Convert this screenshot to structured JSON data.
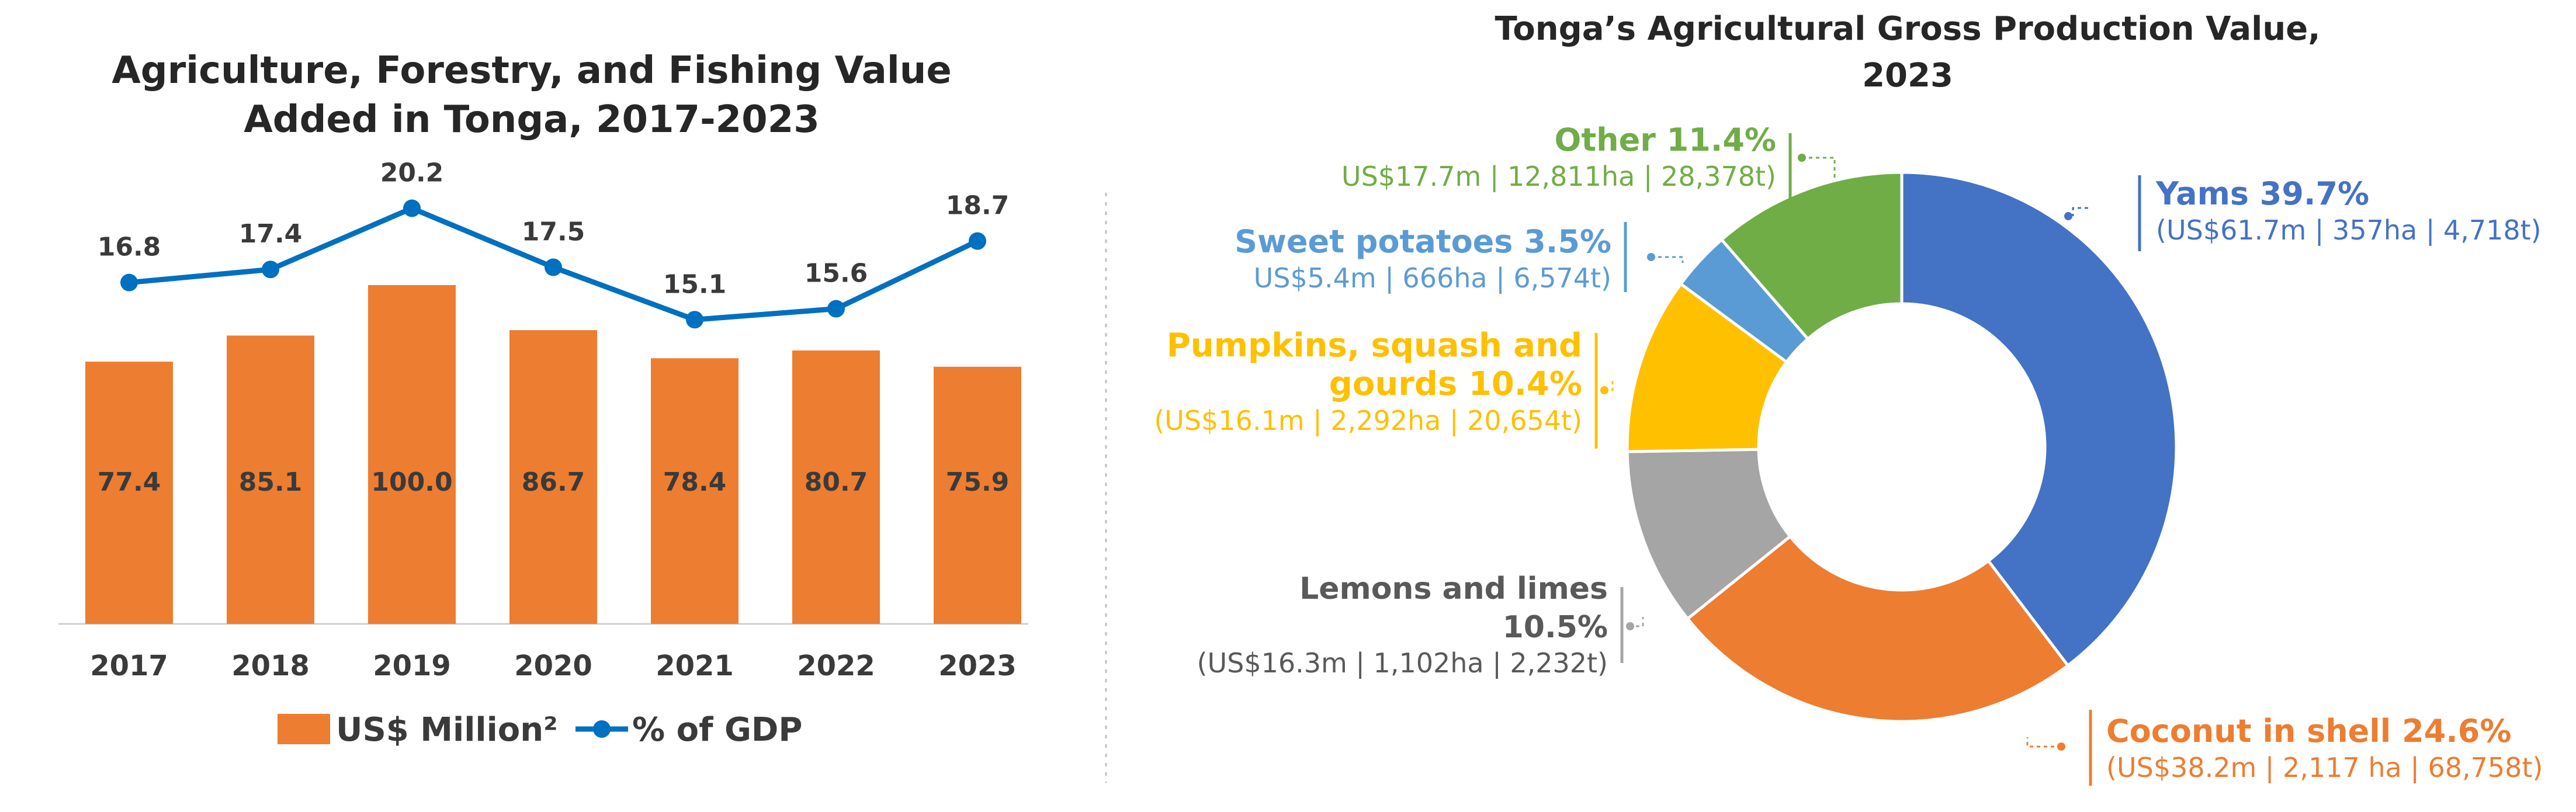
{
  "chart_data": [
    {
      "type": "bar",
      "title": "Agriculture, Forestry, and Fishing Value Added in Tonga, 2017-2023",
      "title_lines": [
        "Agriculture, Forestry, and Fishing Value",
        "Added in Tonga, 2017-2023"
      ],
      "categories": [
        "2017",
        "2018",
        "2019",
        "2020",
        "2021",
        "2022",
        "2023"
      ],
      "xlabel": "",
      "ylabel": "",
      "grid": false,
      "legend_position": "bottom",
      "series": [
        {
          "name": "US$ Million²",
          "type": "bar",
          "color": "#ED7D31",
          "values": [
            77.4,
            85.1,
            100.0,
            86.7,
            78.4,
            80.7,
            75.9
          ],
          "labels": [
            "77.4",
            "85.1",
            "100.0",
            "86.7",
            "78.4",
            "80.7",
            "75.9"
          ]
        },
        {
          "name": "% of GDP",
          "type": "line",
          "color": "#0070C0",
          "values": [
            16.8,
            17.4,
            20.2,
            17.5,
            15.1,
            15.6,
            18.7
          ],
          "labels": [
            "16.8",
            "17.4",
            "20.2",
            "17.5",
            "15.1",
            "15.6",
            "18.7"
          ]
        }
      ]
    },
    {
      "type": "pie",
      "subtype": "donut",
      "title": "Tonga’s Agricultural Gross Production Value, 2023",
      "title_lines": [
        "Tonga’s Agricultural Gross Production Value,",
        "2023"
      ],
      "slices": [
        {
          "name": "Yams",
          "value": 39.7,
          "color": "#4472C4",
          "label_lines": [
            "Yams 39.7%"
          ],
          "detail_lines": [
            "(US$61.7m | 357ha | 4,718t)"
          ]
        },
        {
          "name": "Coconut in shell",
          "value": 24.6,
          "color": "#ED7D31",
          "label_lines": [
            "Coconut in shell 24.6%"
          ],
          "detail_lines": [
            "(US$38.2m | 2,117 ha | 68,758t)"
          ]
        },
        {
          "name": "Lemons and limes",
          "value": 10.5,
          "color": "#A5A5A5",
          "label_lines": [
            "Lemons and limes",
            "10.5%"
          ],
          "detail_lines": [
            "(US$16.3m | 1,102ha | 2,232t)"
          ]
        },
        {
          "name": "Pumpkins, squash and gourds",
          "value": 10.4,
          "color": "#FFC000",
          "label_lines": [
            "Pumpkins, squash and",
            "gourds 10.4%"
          ],
          "detail_lines": [
            "(US$16.1m | 2,292ha | 20,654t)"
          ]
        },
        {
          "name": "Sweet potatoes",
          "value": 3.5,
          "color": "#5B9BD5",
          "label_lines": [
            "Sweet potatoes 3.5%"
          ],
          "detail_lines": [
            "US$5.4m | 666ha | 6,574t)"
          ]
        },
        {
          "name": "Other",
          "value": 11.4,
          "color": "#70AD47",
          "label_lines": [
            "Other 11.4%"
          ],
          "detail_lines": [
            "US$17.7m | 12,811ha | 28,378t)"
          ]
        }
      ]
    }
  ]
}
